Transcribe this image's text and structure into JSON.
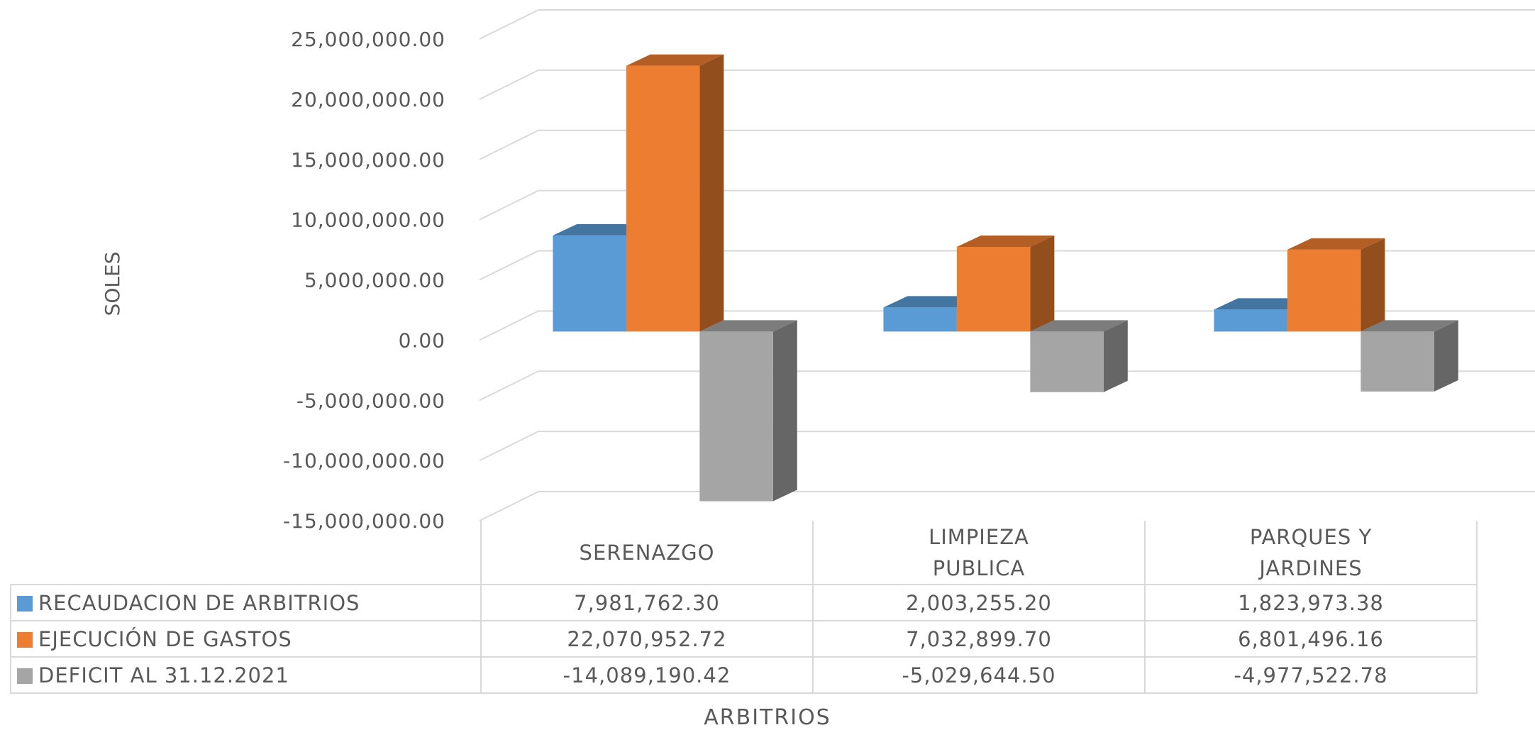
{
  "chart_data": {
    "type": "bar3d",
    "xlabel": "ARBITRIOS",
    "ylabel": "SOLES",
    "categories": [
      "SERENAZGO",
      "LIMPIEZA PUBLICA",
      "PARQUES Y JARDINES"
    ],
    "series": [
      {
        "name": "RECAUDACION DE ARBITRIOS",
        "color": "#5b9bd5",
        "values": [
          7981762.3,
          2003255.2,
          1823973.38
        ],
        "value_labels": [
          "7,981,762.30",
          "2,003,255.20",
          "1,823,973.38"
        ]
      },
      {
        "name": "EJECUCIÓN DE GASTOS",
        "color": "#ed7d31",
        "values": [
          22070952.72,
          7032899.7,
          6801496.16
        ],
        "value_labels": [
          "22,070,952.72",
          "7,032,899.70",
          "6,801,496.16"
        ]
      },
      {
        "name": "DEFICIT AL 31.12.2021",
        "color": "#a5a5a5",
        "values": [
          -14089190.42,
          -5029644.5,
          -4977522.78
        ],
        "value_labels": [
          "-14,089,190.42",
          "-5,029,644.50",
          "-4,977,522.78"
        ]
      }
    ],
    "ylim": [
      -15000000,
      25000000
    ],
    "yticks": [
      {
        "value": -15000000,
        "label": "-15,000,000.00"
      },
      {
        "value": -10000000,
        "label": "-10,000,000.00"
      },
      {
        "value": -5000000,
        "label": "-5,000,000.00"
      },
      {
        "value": 0,
        "label": "0.00"
      },
      {
        "value": 5000000,
        "label": "5,000,000.00"
      },
      {
        "value": 10000000,
        "label": "10,000,000.00"
      },
      {
        "value": 15000000,
        "label": "15,000,000.00"
      },
      {
        "value": 20000000,
        "label": "20,000,000.00"
      },
      {
        "value": 25000000,
        "label": "25,000,000.00"
      }
    ],
    "grid": true
  }
}
